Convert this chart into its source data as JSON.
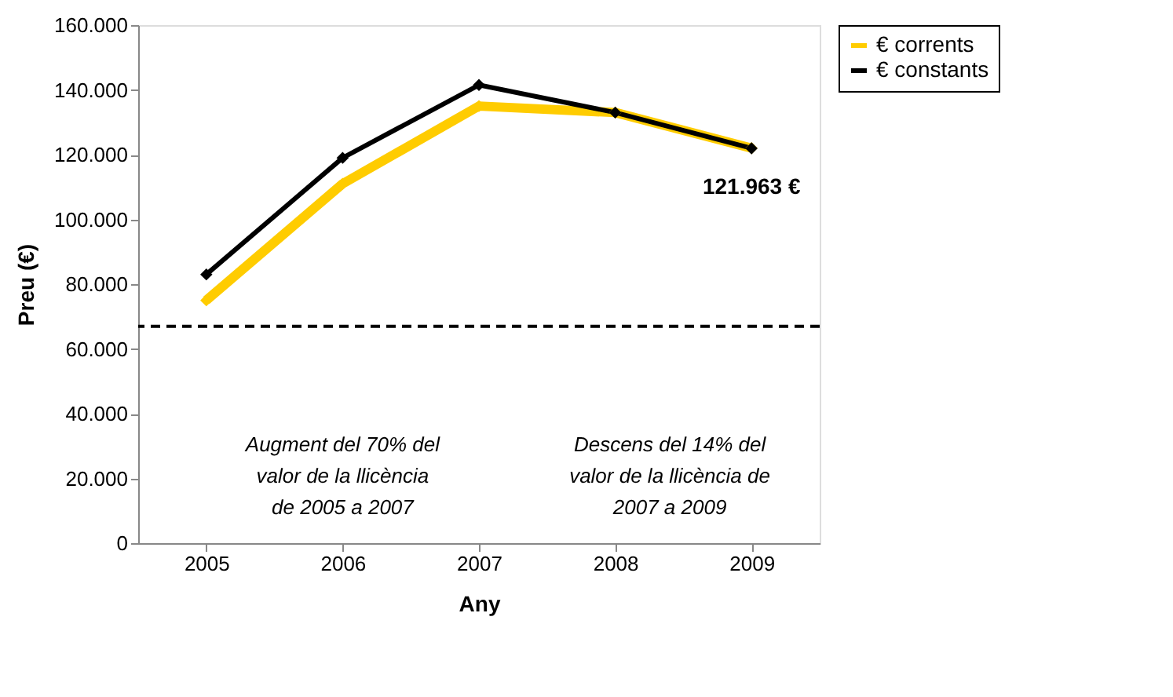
{
  "chart_data": {
    "type": "line",
    "xlabel": "Any",
    "ylabel": "Preu (€)",
    "categories": [
      "2005",
      "2006",
      "2007",
      "2008",
      "2009"
    ],
    "series": [
      {
        "name": "€ corrents",
        "color": "#ffcc00",
        "values": [
          75000,
          111000,
          135000,
          133000,
          122000
        ]
      },
      {
        "name": "€ constants",
        "color": "#000000",
        "values": [
          83000,
          119000,
          141500,
          133000,
          121963
        ],
        "value_labels": [
          null,
          null,
          null,
          null,
          "121.963 €"
        ]
      }
    ],
    "ylim": [
      0,
      160000
    ],
    "yticks": [
      {
        "value": 0,
        "label": "0"
      },
      {
        "value": 20000,
        "label": "20.000"
      },
      {
        "value": 40000,
        "label": "40.000"
      },
      {
        "value": 60000,
        "label": "60.000"
      },
      {
        "value": 80000,
        "label": "80.000"
      },
      {
        "value": 100000,
        "label": "100.000"
      },
      {
        "value": 120000,
        "label": "120.000"
      },
      {
        "value": 140000,
        "label": "140.000"
      },
      {
        "value": 160000,
        "label": "160.000"
      }
    ],
    "ref_lines": [
      {
        "axis": "y",
        "value": 67000,
        "color": "#000000",
        "line_style": "dashed"
      }
    ],
    "annotations": [
      "Augment del 70% del\nvalor de la llicència\nde 2005 a 2007",
      "Descens del 14% del\nvalor de la llicència de\n2007 a 2009"
    ],
    "marker": "diamond",
    "line_style": "solid",
    "legend": "right",
    "grid": false
  }
}
